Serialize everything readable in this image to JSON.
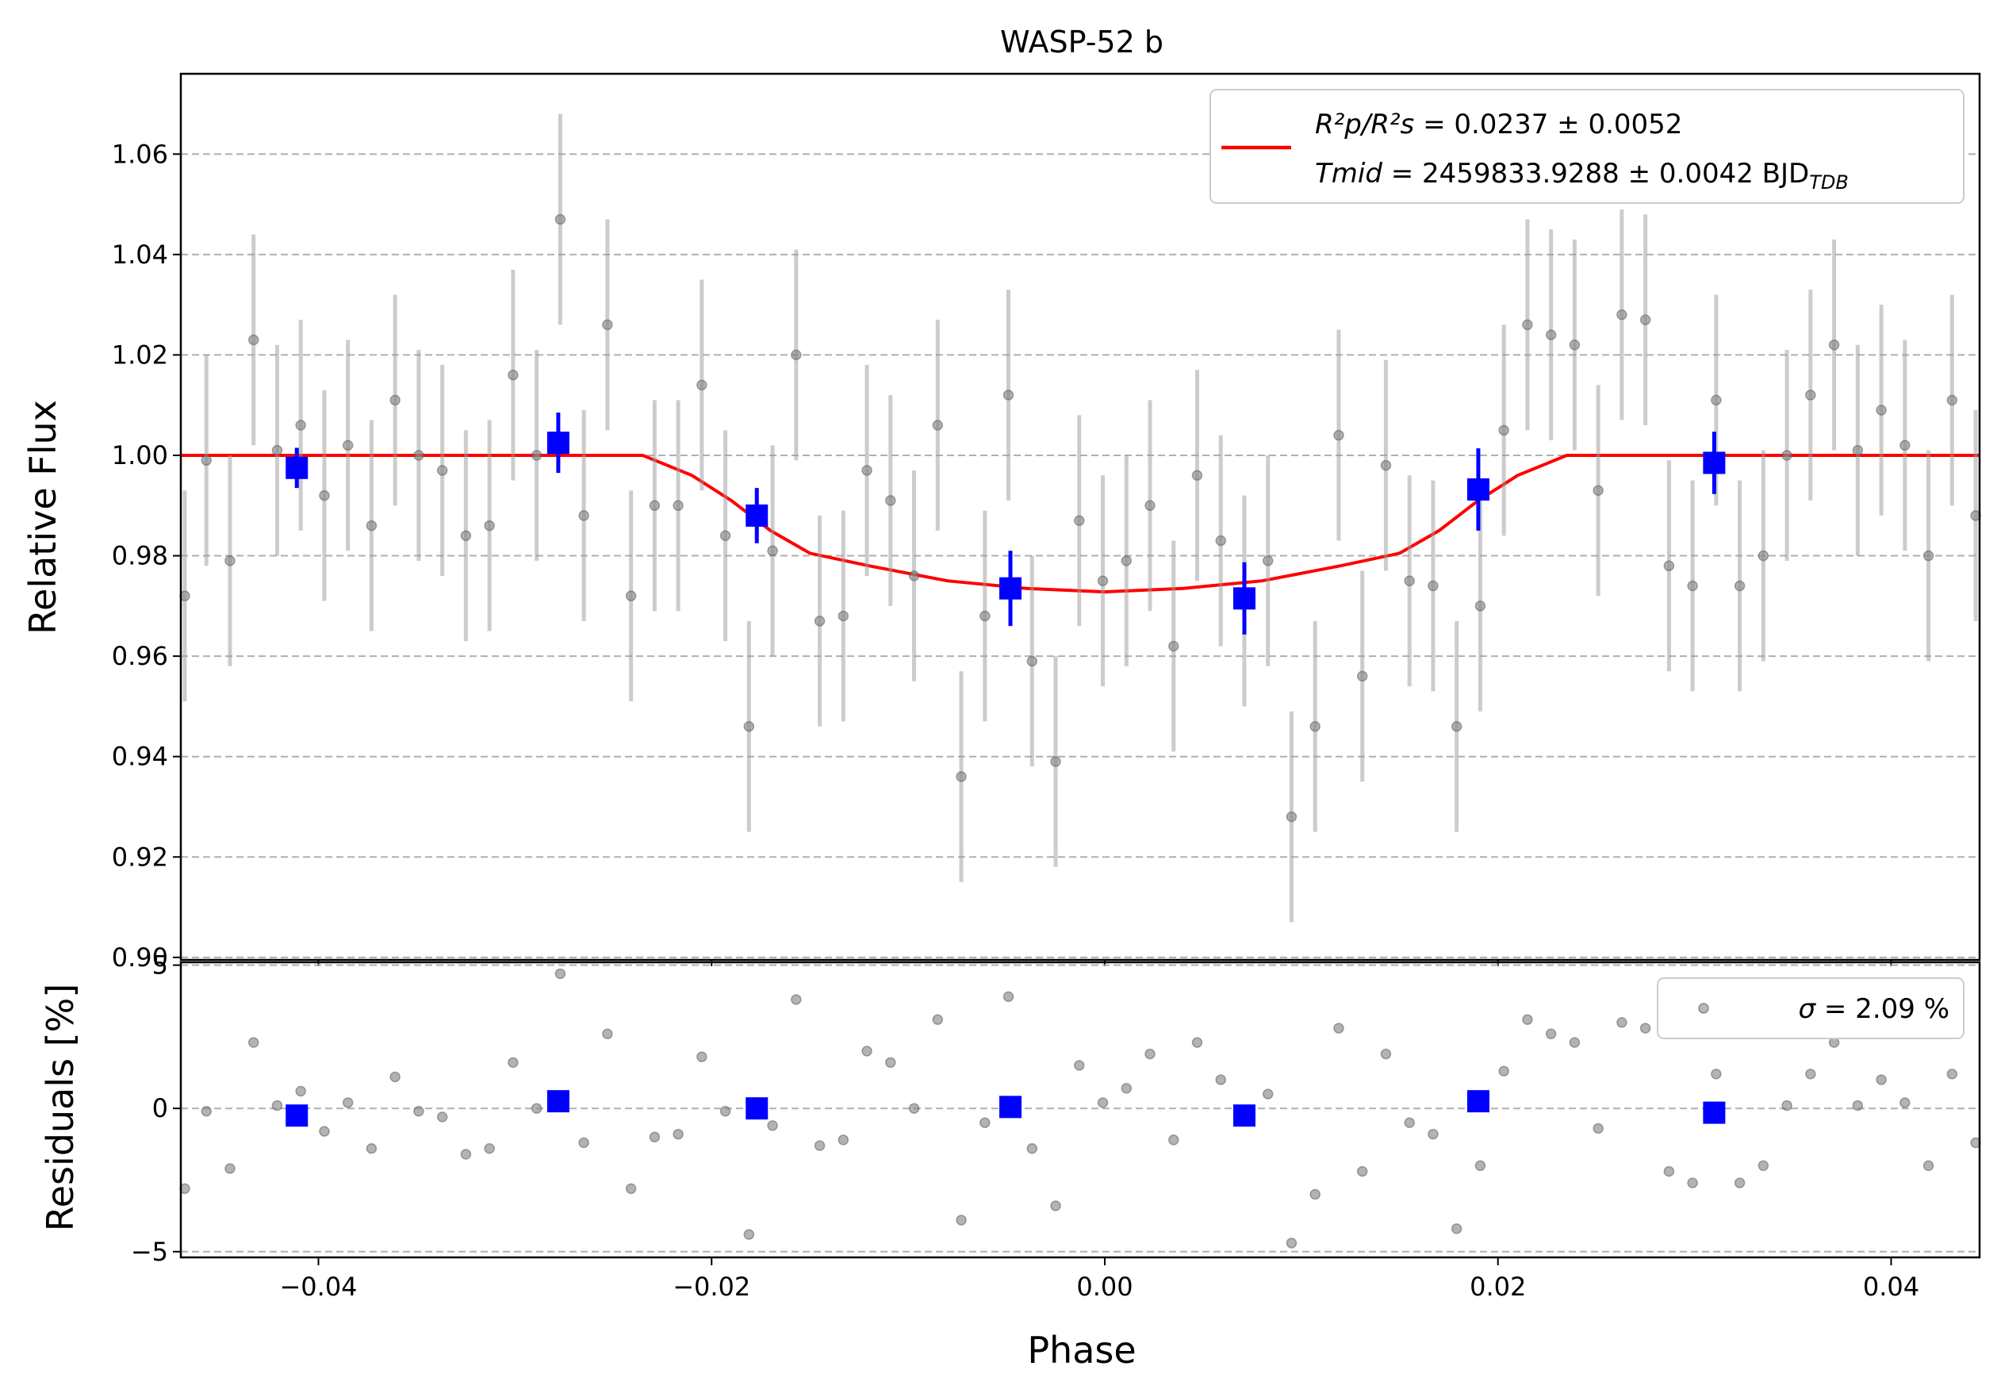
{
  "chart_data": [
    {
      "type": "scatter",
      "title": "WASP-52 b",
      "xlabel": "",
      "ylabel": "Relative Flux",
      "xlim": [
        -0.047,
        0.0445
      ],
      "ylim": [
        0.8995,
        1.076
      ],
      "grid": "y-dashed",
      "xticks": [
        -0.04,
        -0.02,
        0.0,
        0.02,
        0.04
      ],
      "yticks": [
        0.9,
        0.92,
        0.94,
        0.96,
        0.98,
        1.0,
        1.02,
        1.04,
        1.06
      ],
      "ytick_labels": [
        "0.90",
        "0.92",
        "0.94",
        "0.96",
        "0.98",
        "1.00",
        "1.02",
        "1.04",
        "1.06"
      ],
      "legend": {
        "placement": "top-right",
        "ratio_symbol": "R²p/R²s",
        "ratio_text": " = 0.0237 ± 0.0052",
        "tmid_symbol": "Tmid",
        "tmid_text": " = 2459833.9288 ± 0.0042 BJD",
        "tmid_subscript": "TDB",
        "color": "#ff0000"
      },
      "series": [
        {
          "role": "data",
          "color": "#808080",
          "x": [
            -0.0468,
            -0.0457,
            -0.0445,
            -0.0433,
            -0.0421,
            -0.0409,
            -0.0397,
            -0.0385,
            -0.0373,
            -0.0361,
            -0.0349,
            -0.0337,
            -0.0325,
            -0.0313,
            -0.0301,
            -0.0289,
            -0.0277,
            -0.0265,
            -0.0253,
            -0.0241,
            -0.0229,
            -0.0217,
            -0.0205,
            -0.0193,
            -0.0181,
            -0.0169,
            -0.0157,
            -0.0145,
            -0.0133,
            -0.0121,
            -0.0109,
            -0.0097,
            -0.0085,
            -0.0073,
            -0.0061,
            -0.0049,
            -0.0037,
            -0.0025,
            -0.0013,
            -0.0001,
            0.0011,
            0.0023,
            0.0035,
            0.0047,
            0.0059,
            0.0071,
            0.0083,
            0.0095,
            0.0107,
            0.0119,
            0.0131,
            0.0143,
            0.0155,
            0.0167,
            0.0179,
            0.0191,
            0.0203,
            0.0215,
            0.0227,
            0.0239,
            0.0251,
            0.0263,
            0.0275,
            0.0287,
            0.0299,
            0.0311,
            0.0323,
            0.0335,
            0.0347,
            0.0359,
            0.0371,
            0.0383,
            0.0395,
            0.0407,
            0.0419,
            0.0431,
            0.0443
          ],
          "y": [
            0.972,
            0.999,
            0.979,
            1.023,
            1.001,
            1.006,
            0.992,
            1.002,
            0.986,
            1.011,
            1.0,
            0.997,
            0.984,
            0.986,
            1.016,
            1.0,
            1.047,
            0.988,
            1.026,
            0.972,
            0.99,
            0.99,
            1.014,
            0.984,
            0.946,
            0.981,
            1.02,
            0.967,
            0.968,
            0.997,
            0.991,
            0.976,
            1.006,
            0.936,
            0.968,
            1.012,
            0.959,
            0.939,
            0.987,
            0.975,
            0.979,
            0.99,
            0.962,
            0.996,
            0.983,
            0.971,
            0.979,
            0.928,
            0.946,
            1.004,
            0.956,
            0.998,
            0.975,
            0.974,
            0.946,
            0.97,
            1.005,
            1.026,
            1.024,
            1.022,
            0.993,
            1.028,
            1.027,
            0.978,
            0.974,
            1.011,
            0.974,
            0.98,
            1.0,
            1.012,
            1.022,
            1.001,
            1.009,
            1.002,
            0.98,
            1.011,
            0.988
          ],
          "error": 0.021
        },
        {
          "role": "binned",
          "color": "#0000ff",
          "x": [
            -0.0411,
            -0.0278,
            -0.0177,
            -0.0048,
            0.0071,
            0.019,
            0.031
          ],
          "y": [
            0.9975,
            1.0025,
            0.988,
            0.9735,
            0.9715,
            0.9932,
            0.9985
          ],
          "error": [
            0.004,
            0.006,
            0.0055,
            0.0075,
            0.0072,
            0.0082,
            0.0062
          ]
        },
        {
          "role": "model",
          "color": "#ff0000",
          "x": [
            -0.047,
            -0.0235,
            -0.021,
            -0.019,
            -0.017,
            -0.015,
            -0.012,
            -0.008,
            -0.004,
            0.0,
            0.004,
            0.008,
            0.012,
            0.015,
            0.017,
            0.019,
            0.021,
            0.0235,
            0.0445
          ],
          "y": [
            1.0,
            1.0,
            0.996,
            0.991,
            0.985,
            0.9805,
            0.978,
            0.975,
            0.9735,
            0.9728,
            0.9735,
            0.975,
            0.978,
            0.9805,
            0.985,
            0.991,
            0.996,
            1.0,
            1.0
          ]
        }
      ]
    },
    {
      "type": "scatter",
      "title": "",
      "xlabel": "Phase",
      "ylabel": "Residuals [%]",
      "xlim": [
        -0.047,
        0.0445
      ],
      "ylim": [
        -5.2,
        5.1
      ],
      "grid": "y-dashed",
      "xticks": [
        -0.04,
        -0.02,
        0.0,
        0.02,
        0.04
      ],
      "xtick_labels": [
        "−0.04",
        "−0.02",
        "0.00",
        "0.02",
        "0.04"
      ],
      "yticks": [
        -5,
        0,
        5
      ],
      "ytick_labels": [
        "−5",
        "0",
        "5"
      ],
      "legend": {
        "placement": "top-right",
        "sigma_symbol": "σ",
        "sigma_text": " = 2.09 %",
        "color": "#808080"
      },
      "series": [
        {
          "role": "residuals",
          "color": "#808080",
          "x": [
            -0.0468,
            -0.0457,
            -0.0445,
            -0.0433,
            -0.0421,
            -0.0409,
            -0.0397,
            -0.0385,
            -0.0373,
            -0.0361,
            -0.0349,
            -0.0337,
            -0.0325,
            -0.0313,
            -0.0301,
            -0.0289,
            -0.0277,
            -0.0265,
            -0.0253,
            -0.0241,
            -0.0229,
            -0.0217,
            -0.0205,
            -0.0193,
            -0.0181,
            -0.0169,
            -0.0157,
            -0.0145,
            -0.0133,
            -0.0121,
            -0.0109,
            -0.0097,
            -0.0085,
            -0.0073,
            -0.0061,
            -0.0049,
            -0.0037,
            -0.0025,
            -0.0013,
            -0.0001,
            0.0011,
            0.0023,
            0.0035,
            0.0047,
            0.0059,
            0.0071,
            0.0083,
            0.0095,
            0.0107,
            0.0119,
            0.0131,
            0.0143,
            0.0155,
            0.0167,
            0.0179,
            0.0191,
            0.0203,
            0.0215,
            0.0227,
            0.0239,
            0.0251,
            0.0263,
            0.0275,
            0.0287,
            0.0299,
            0.0311,
            0.0323,
            0.0335,
            0.0347,
            0.0359,
            0.0371,
            0.0383,
            0.0395,
            0.0407,
            0.0419,
            0.0431,
            0.0443
          ],
          "y": [
            -2.8,
            -0.1,
            -2.1,
            2.3,
            0.1,
            0.6,
            -0.8,
            0.2,
            -1.4,
            1.1,
            -0.1,
            -0.3,
            -1.6,
            -1.4,
            1.6,
            0.0,
            4.7,
            -1.2,
            2.6,
            -2.8,
            -1.0,
            -0.9,
            1.8,
            -0.1,
            -4.4,
            -0.6,
            3.8,
            -1.3,
            -1.1,
            2.0,
            1.6,
            0.0,
            3.1,
            -3.9,
            -0.5,
            3.9,
            -1.4,
            -3.4,
            1.5,
            0.2,
            0.7,
            1.9,
            -1.1,
            2.3,
            1.0,
            -0.3,
            0.5,
            -4.7,
            -3.0,
            2.8,
            -2.2,
            1.9,
            -0.5,
            -0.9,
            -4.2,
            -2.0,
            1.3,
            3.1,
            2.6,
            2.3,
            -0.7,
            3.0,
            2.8,
            -2.2,
            -2.6,
            1.2,
            -2.6,
            -2.0,
            0.1,
            1.2,
            2.3,
            0.1,
            1.0,
            0.2,
            -2.0,
            1.2,
            -1.2
          ]
        },
        {
          "role": "binned-residuals",
          "color": "#0000ff",
          "x": [
            -0.0411,
            -0.0278,
            -0.0177,
            -0.0048,
            0.0071,
            0.019,
            0.031
          ],
          "y": [
            -0.25,
            0.25,
            0.0,
            0.05,
            -0.25,
            0.25,
            -0.15
          ]
        }
      ]
    }
  ]
}
